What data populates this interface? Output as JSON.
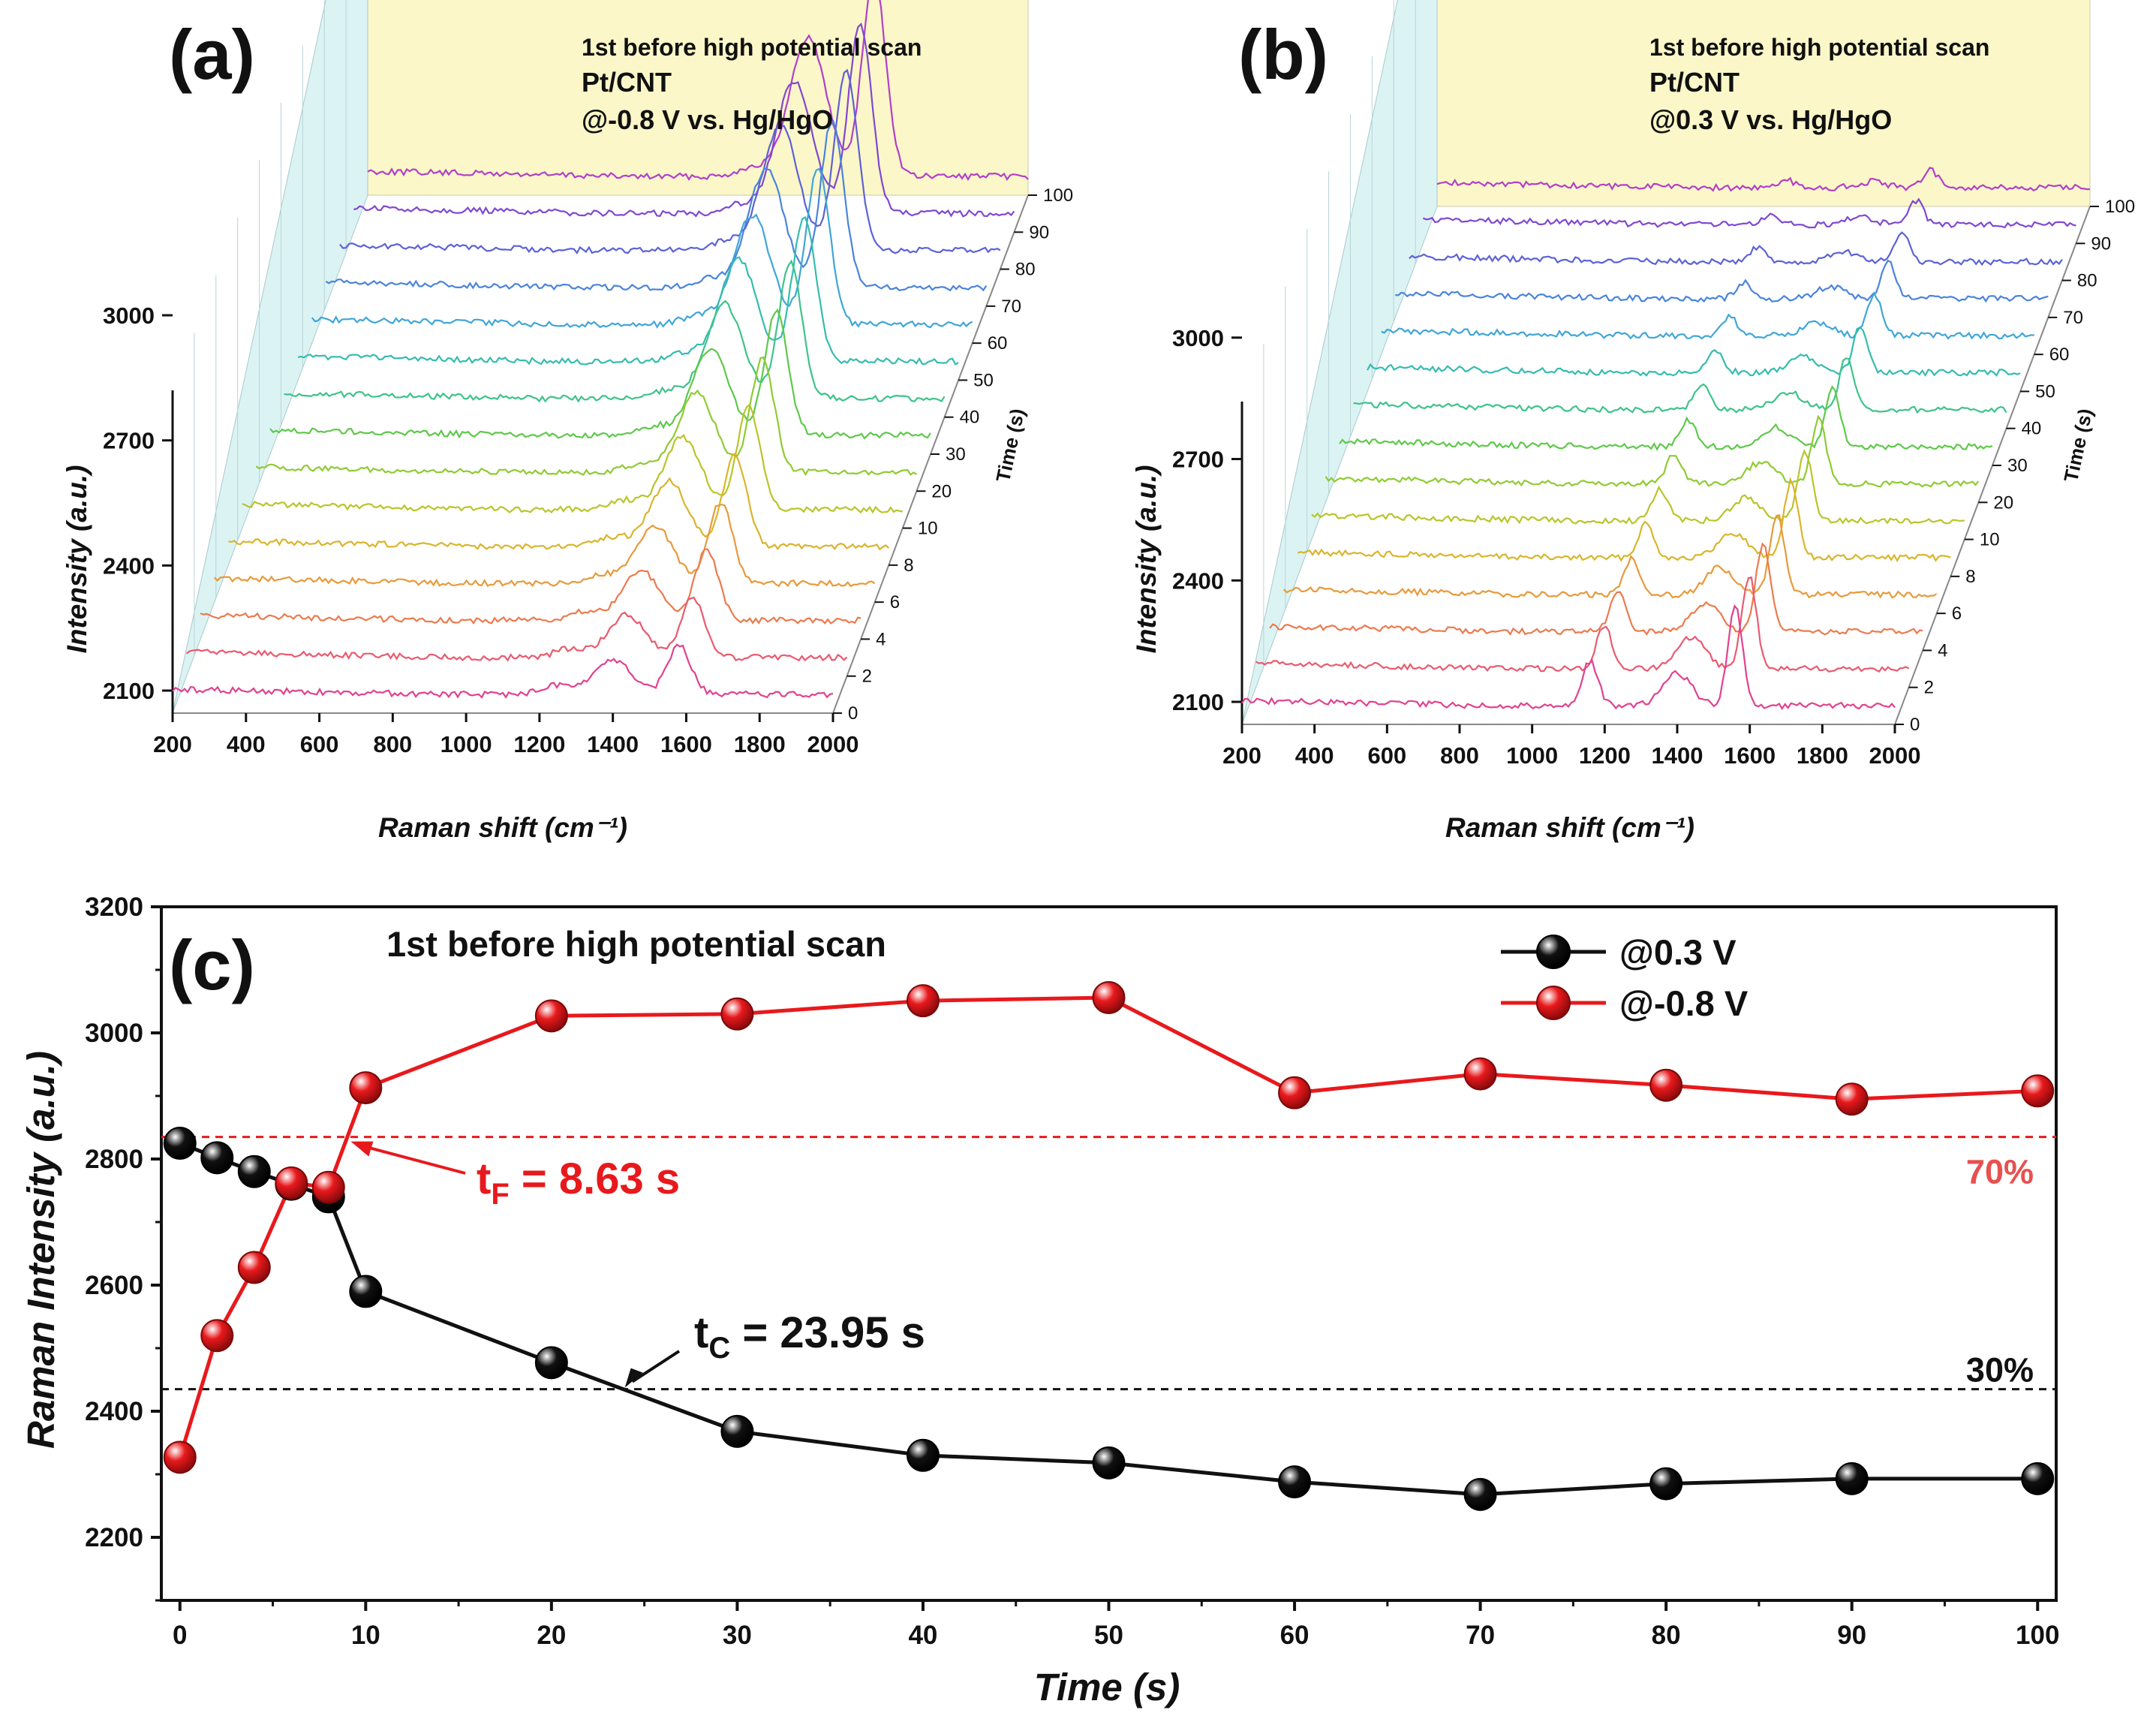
{
  "chart_data": [
    {
      "type": "line",
      "panel": "(a)",
      "inset_lines": [
        "1st before high potential scan",
        "Pt/CNT",
        "@-0.8 V vs. Hg/HgO"
      ],
      "xlabel": "Raman shift (cm⁻¹)",
      "ylabel": "Intensity (a.u.)",
      "zlabel": "Time (s)",
      "x_ticks": [
        200,
        400,
        600,
        800,
        1000,
        1200,
        1400,
        1600,
        1800,
        2000
      ],
      "y_ticks": [
        2100,
        2400,
        2700,
        3000
      ],
      "time_ticks": [
        0,
        2,
        4,
        6,
        8,
        10,
        20,
        30,
        40,
        50,
        60,
        70,
        80,
        90,
        100
      ],
      "peak_positions": [
        1400,
        1580
      ]
    },
    {
      "type": "line",
      "panel": "(b)",
      "inset_lines": [
        "1st before high potential scan",
        "Pt/CNT",
        "@0.3 V vs. Hg/HgO"
      ],
      "xlabel": "Raman shift (cm⁻¹)",
      "ylabel": "Intensity (a.u.)",
      "zlabel": "Time (s)",
      "x_ticks": [
        200,
        400,
        600,
        800,
        1000,
        1200,
        1400,
        1600,
        1800,
        2000
      ],
      "y_ticks": [
        2100,
        2400,
        2700,
        3000
      ],
      "time_ticks": [
        0,
        2,
        4,
        6,
        8,
        10,
        20,
        30,
        40,
        50,
        60,
        70,
        80,
        90,
        100
      ],
      "peak_positions": [
        1160,
        1400,
        1560
      ]
    },
    {
      "type": "line",
      "panel": "(c)",
      "title": "1st before high potential scan",
      "xlabel": "Time (s)",
      "ylabel": "Raman Intensity (a.u.)",
      "xlim": [
        -1,
        101
      ],
      "ylim": [
        2100,
        3200
      ],
      "x_ticks": [
        0,
        10,
        20,
        30,
        40,
        50,
        60,
        70,
        80,
        90,
        100
      ],
      "y_ticks": [
        2200,
        2400,
        2600,
        2800,
        3000,
        3200
      ],
      "x": [
        0,
        2,
        4,
        6,
        8,
        10,
        20,
        30,
        40,
        50,
        60,
        70,
        80,
        90,
        100
      ],
      "series": [
        {
          "name": "@0.3 V",
          "color": "#111111",
          "values": [
            2825,
            2802,
            2780,
            2760,
            2740,
            2590,
            2477,
            2368,
            2330,
            2318,
            2288,
            2268,
            2285,
            2293,
            2293
          ]
        },
        {
          "name": "@-0.8 V",
          "color": "#e8191c",
          "values": [
            2327,
            2520,
            2628,
            2762,
            2755,
            2913,
            3027,
            3030,
            3051,
            3056,
            2905,
            2935,
            2917,
            2895,
            2908
          ]
        }
      ],
      "reference_lines": [
        {
          "label": "70%",
          "value": 2835,
          "color": "#e8191c"
        },
        {
          "label": "30%",
          "value": 2435,
          "color": "#111111"
        }
      ],
      "annotations": [
        {
          "main": "t",
          "sub": "F",
          "rest": " = 8.63 s",
          "x": 8.63,
          "color": "#e8191c"
        },
        {
          "main": "t",
          "sub": "C",
          "rest": " = 23.95 s",
          "x": 23.95,
          "color": "#111111"
        }
      ]
    }
  ]
}
